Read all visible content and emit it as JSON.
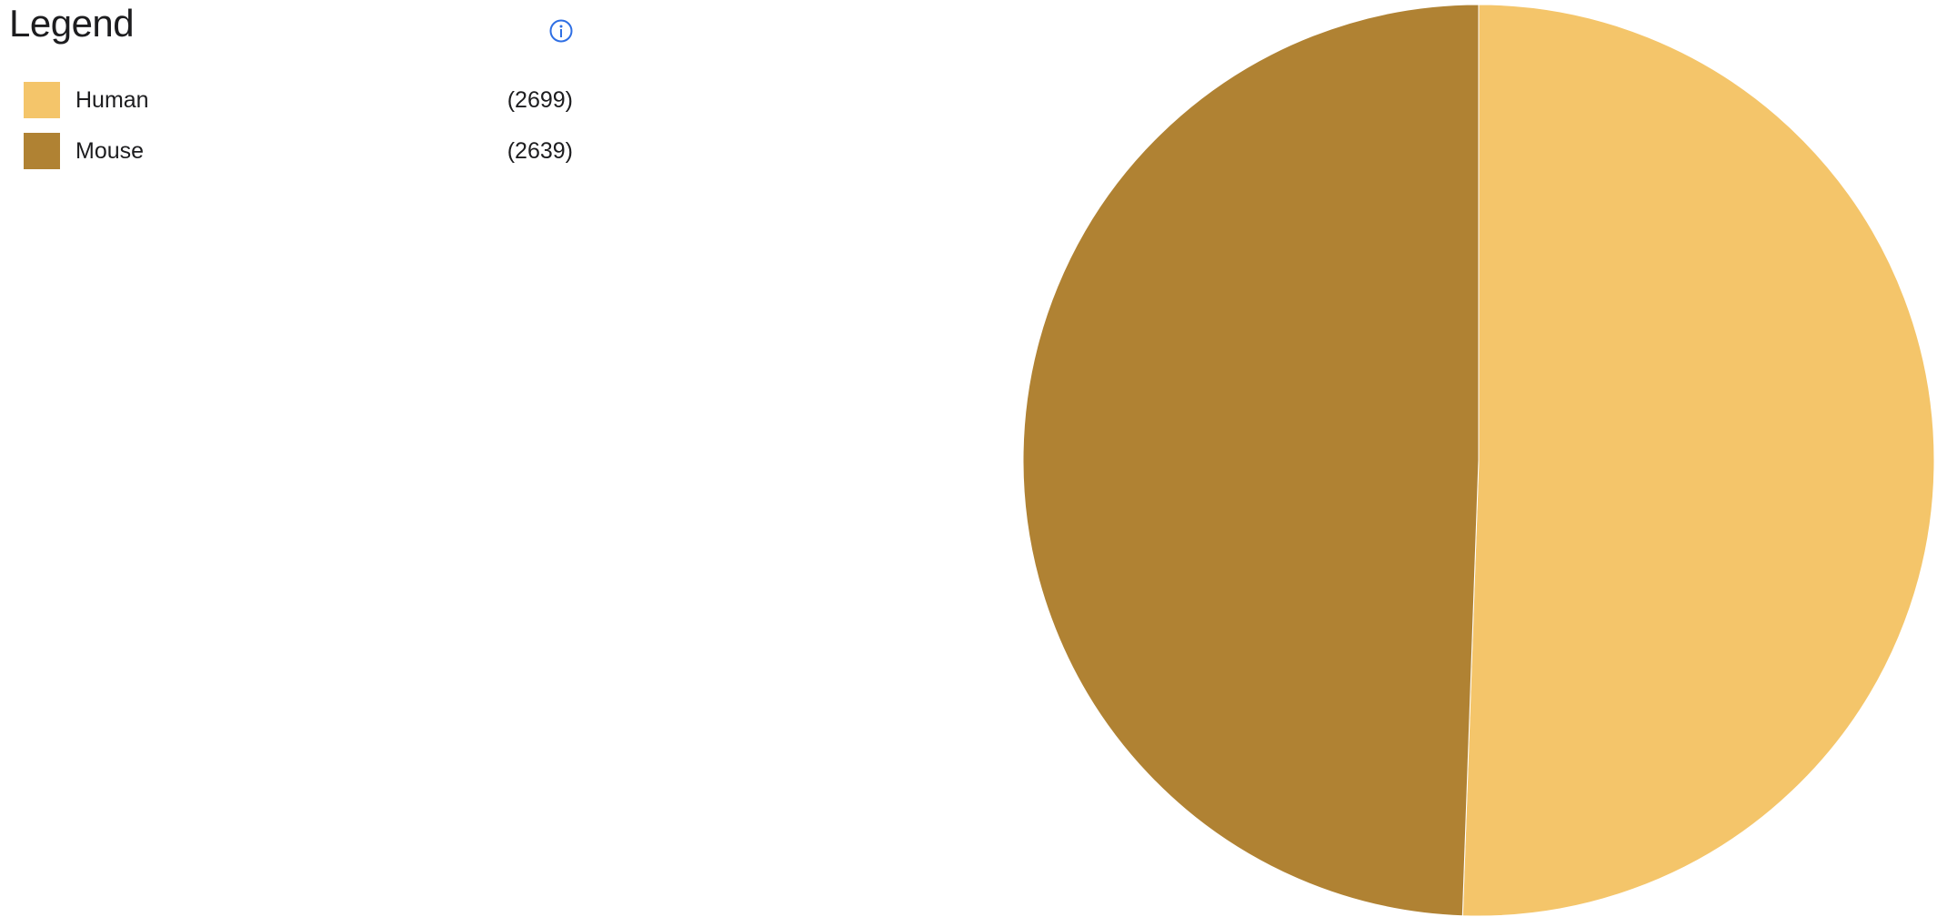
{
  "legend": {
    "title": "Legend",
    "info_icon": "info-circle-icon",
    "info_color": "#2f6fe4",
    "items": [
      {
        "label": "Human",
        "count": "(2699)",
        "color": "#f4c56a"
      },
      {
        "label": "Mouse",
        "count": "(2639)",
        "color": "#b08233"
      }
    ]
  },
  "chart_data": {
    "type": "pie",
    "categories": [
      "Human",
      "Mouse"
    ],
    "values": [
      2699,
      2639
    ],
    "colors": [
      "#f4c56a",
      "#b08233"
    ],
    "start": "12 o'clock, clockwise",
    "legend_position": "top-left"
  }
}
